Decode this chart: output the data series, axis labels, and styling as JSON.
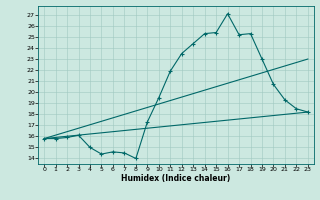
{
  "title": "",
  "xlabel": "Humidex (Indice chaleur)",
  "ylabel": "",
  "background_color": "#cce8e0",
  "line_color": "#006868",
  "xlim": [
    -0.5,
    23.5
  ],
  "ylim": [
    13.5,
    27.8
  ],
  "yticks": [
    14,
    15,
    16,
    17,
    18,
    19,
    20,
    21,
    22,
    23,
    24,
    25,
    26,
    27
  ],
  "xticks": [
    0,
    1,
    2,
    3,
    4,
    5,
    6,
    7,
    8,
    9,
    10,
    11,
    12,
    13,
    14,
    15,
    16,
    17,
    18,
    19,
    20,
    21,
    22,
    23
  ],
  "series1_x": [
    0,
    1,
    2,
    3,
    4,
    5,
    6,
    7,
    8,
    9,
    10,
    11,
    12,
    13,
    14,
    15,
    16,
    17,
    18,
    19,
    20,
    21,
    22,
    23
  ],
  "series1_y": [
    15.8,
    15.8,
    15.9,
    16.1,
    15.0,
    14.4,
    14.6,
    14.5,
    14.0,
    17.3,
    19.5,
    21.9,
    23.5,
    24.4,
    25.3,
    25.4,
    27.1,
    25.2,
    25.3,
    23.0,
    20.7,
    19.3,
    18.5,
    18.2
  ],
  "series2_x": [
    0,
    23
  ],
  "series2_y": [
    15.8,
    23.0
  ],
  "series3_x": [
    0,
    23
  ],
  "series3_y": [
    15.8,
    18.2
  ],
  "grid_color": "#a0c8c0",
  "xlabel_fontsize": 5.5,
  "xlabel_fontweight": "bold",
  "tick_fontsize": 4.5,
  "linewidth": 0.8,
  "markersize": 3.0,
  "markeredgewidth": 0.8
}
